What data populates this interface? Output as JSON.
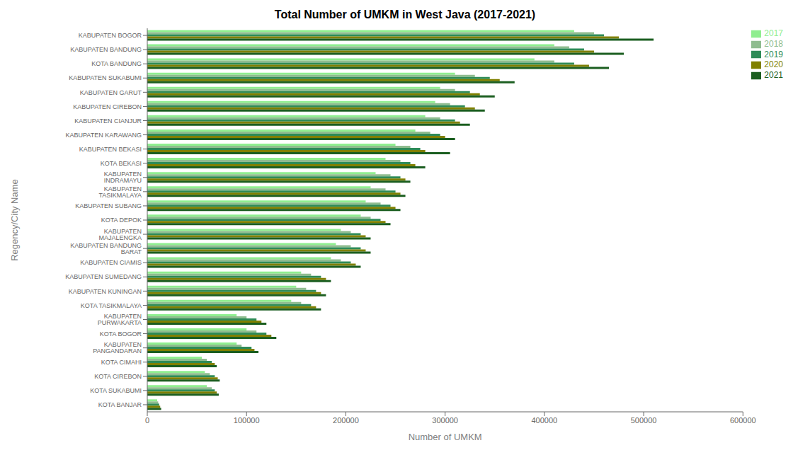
{
  "chart_data": {
    "type": "bar",
    "orientation": "horizontal",
    "title": "Total Number of UMKM in West Java (2017-2021)",
    "xlabel": "Number of UMKM",
    "ylabel": "Regency/City Name",
    "categories": [
      "KABUPATEN BOGOR",
      "KABUPATEN BANDUNG",
      "KOTA BANDUNG",
      "KABUPATEN SUKABUMI",
      "KABUPATEN GARUT",
      "KABUPATEN CIREBON",
      "KABUPATEN CIANJUR",
      "KABUPATEN KARAWANG",
      "KABUPATEN BEKASI",
      "KOTA BEKASI",
      "KABUPATEN INDRAMAYU",
      "KABUPATEN TASIKMALAYA",
      "KABUPATEN SUBANG",
      "KOTA DEPOK",
      "KABUPATEN MAJALENGKA",
      "KABUPATEN BANDUNG BARAT",
      "KABUPATEN CIAMIS",
      "KABUPATEN SUMEDANG",
      "KABUPATEN KUNINGAN",
      "KOTA TASIKMALAYA",
      "KABUPATEN PURWAKARTA",
      "KOTA BOGOR",
      "KABUPATEN PANGANDARAN",
      "KOTA CIMAHI",
      "KOTA CIREBON",
      "KOTA SUKABUMI",
      "KOTA BANJAR"
    ],
    "series": [
      {
        "name": "2017",
        "color": "#90EE90",
        "values": [
          430000,
          410000,
          390000,
          310000,
          295000,
          290000,
          280000,
          270000,
          250000,
          240000,
          230000,
          225000,
          220000,
          215000,
          195000,
          190000,
          185000,
          155000,
          150000,
          145000,
          90000,
          100000,
          90000,
          55000,
          58000,
          60000,
          10000
        ]
      },
      {
        "name": "2018",
        "color": "#8FBC8F",
        "values": [
          450000,
          425000,
          410000,
          330000,
          310000,
          305000,
          295000,
          285000,
          265000,
          255000,
          245000,
          240000,
          235000,
          225000,
          205000,
          205000,
          195000,
          165000,
          160000,
          155000,
          100000,
          110000,
          95000,
          60000,
          63000,
          65000,
          11000
        ]
      },
      {
        "name": "2019",
        "color": "#2E8B57",
        "values": [
          460000,
          440000,
          430000,
          345000,
          325000,
          320000,
          310000,
          295000,
          275000,
          265000,
          255000,
          250000,
          245000,
          235000,
          215000,
          215000,
          205000,
          175000,
          170000,
          165000,
          110000,
          120000,
          105000,
          65000,
          68000,
          68000,
          12000
        ]
      },
      {
        "name": "2020",
        "color": "#808000",
        "values": [
          475000,
          450000,
          445000,
          355000,
          335000,
          330000,
          315000,
          300000,
          280000,
          270000,
          260000,
          255000,
          250000,
          240000,
          220000,
          220000,
          210000,
          180000,
          175000,
          170000,
          115000,
          125000,
          108000,
          68000,
          71000,
          70000,
          13000
        ]
      },
      {
        "name": "2021",
        "color": "#1B5E20",
        "values": [
          510000,
          480000,
          465000,
          370000,
          350000,
          340000,
          325000,
          310000,
          305000,
          280000,
          265000,
          260000,
          255000,
          245000,
          225000,
          225000,
          215000,
          185000,
          180000,
          175000,
          120000,
          130000,
          112000,
          70000,
          73000,
          72000,
          14000
        ]
      }
    ],
    "xlim": [
      0,
      600000
    ],
    "xticks": [
      0,
      100000,
      200000,
      300000,
      400000,
      500000,
      600000
    ],
    "grid": false,
    "legend": "upper right"
  }
}
